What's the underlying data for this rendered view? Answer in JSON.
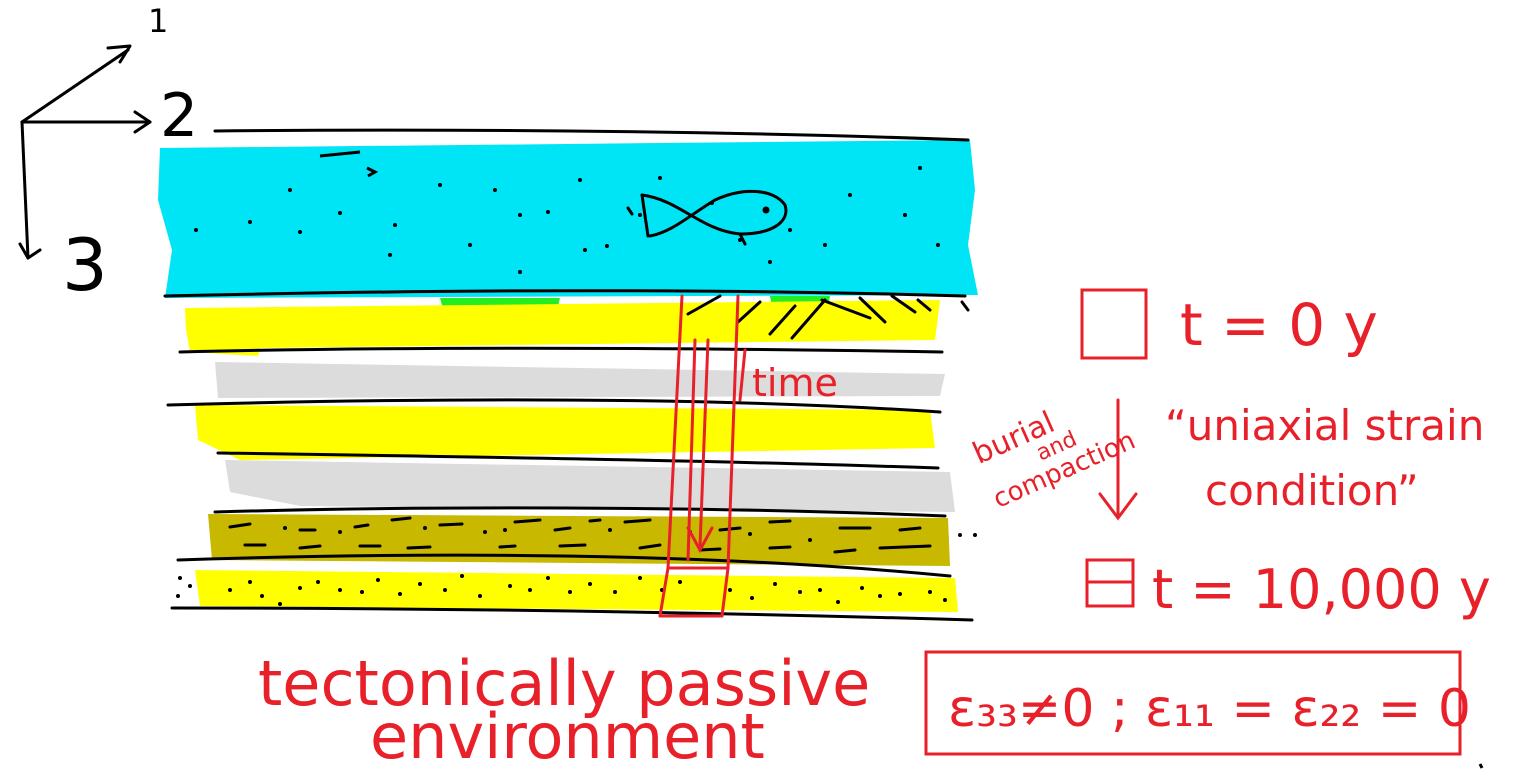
{
  "axes": {
    "axis_1": "1",
    "axis_2": "2",
    "axis_3": "3"
  },
  "labels": {
    "time": "time",
    "burial_line1": "burial",
    "burial_line2": "and",
    "burial_line3": "compaction",
    "t0": "t = 0 y",
    "t10000": "t = 10,000 y",
    "uniaxial_line1": "“uniaxial strain",
    "uniaxial_line2": "condition”",
    "env_line1": "tectonically passive",
    "env_line2": "environment",
    "strain_equation": "ε₃₃≠0 ; ε₁₁ = ε₂₂ = 0"
  },
  "colors": {
    "water": "#00e5f5",
    "sand": "#ffff00",
    "shale": "#dcdcdc",
    "silt": "#c8b800",
    "green_patch": "#22ee22",
    "annotation": "#e8202a",
    "ink": "#000000"
  },
  "layers": [
    {
      "type": "water"
    },
    {
      "type": "sand"
    },
    {
      "type": "shale"
    },
    {
      "type": "sand"
    },
    {
      "type": "shale"
    },
    {
      "type": "silt"
    },
    {
      "type": "sand"
    }
  ]
}
